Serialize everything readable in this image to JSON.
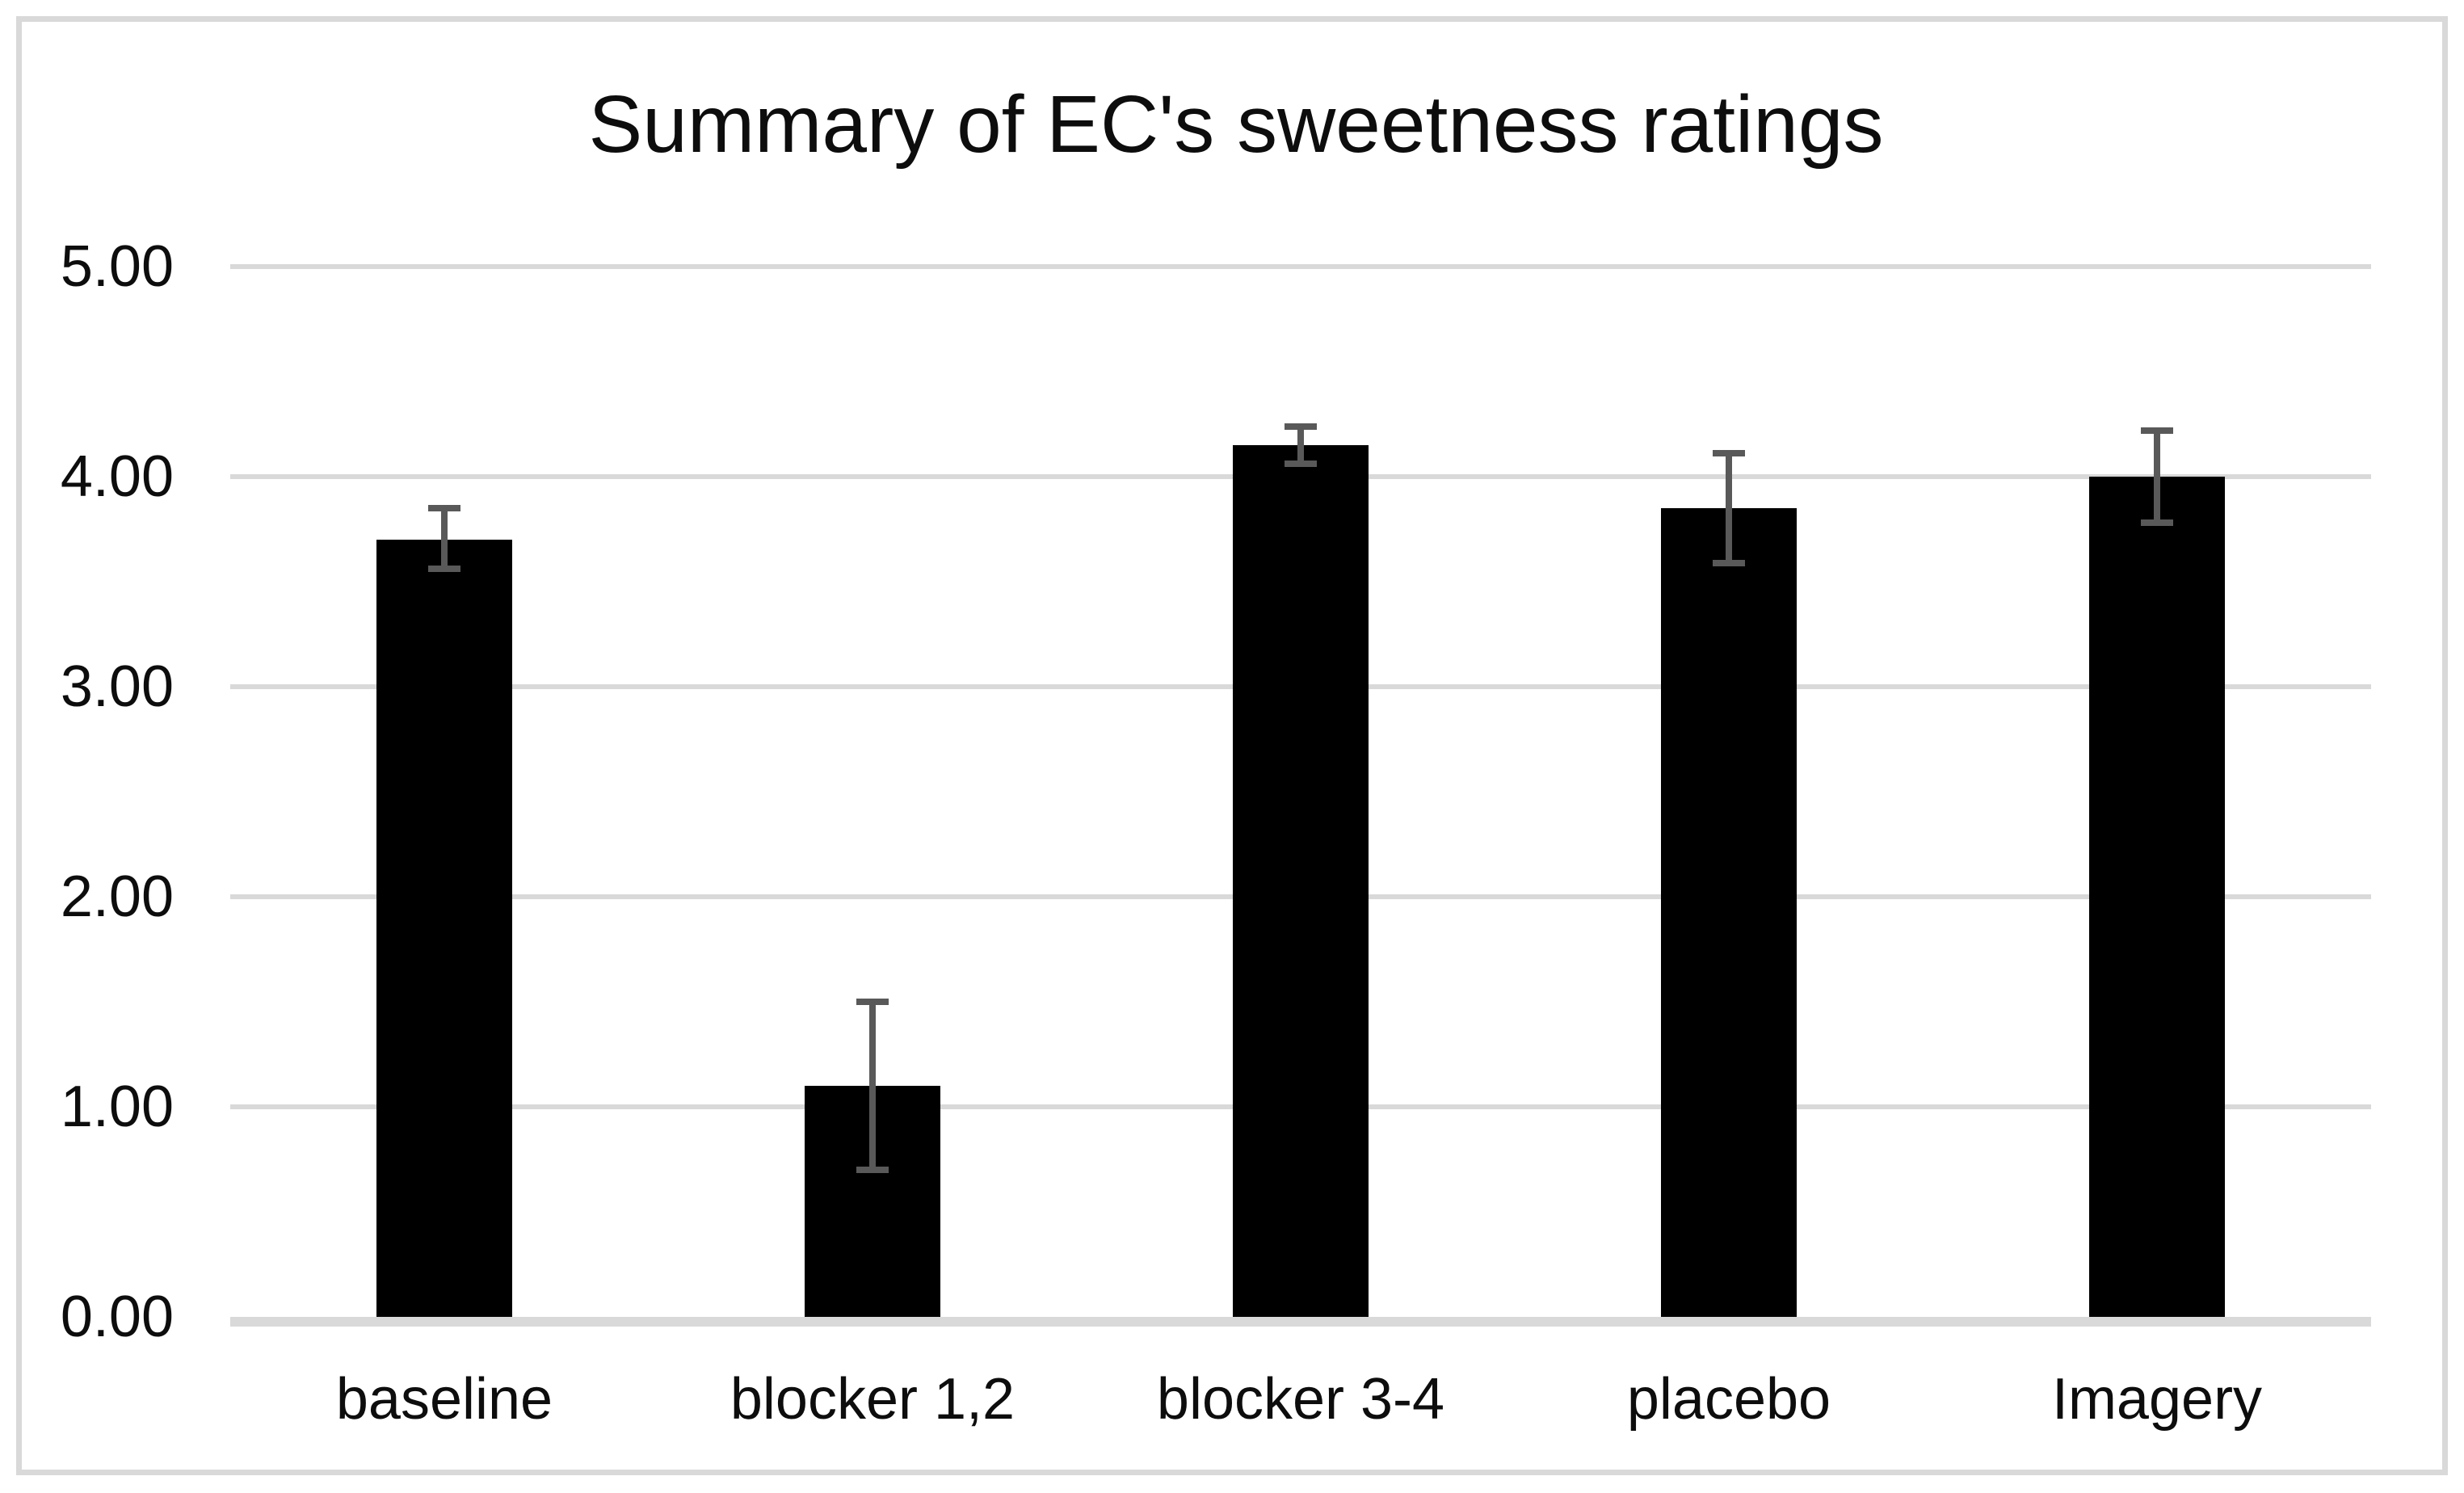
{
  "figure": {
    "background": "#ffffff",
    "border_color": "#d9d9d9"
  },
  "chart_data": {
    "type": "bar",
    "title": "Summary of EC's sweetness ratings",
    "categories": [
      "baseline",
      "blocker 1,2",
      "blocker 3-4",
      "placebo",
      "Imagery"
    ],
    "values": [
      3.7,
      1.1,
      4.15,
      3.85,
      4.0
    ],
    "error_bars": {
      "upper": [
        3.85,
        1.5,
        4.24,
        4.11,
        4.22
      ],
      "lower": [
        3.56,
        0.7,
        4.06,
        3.59,
        3.78
      ]
    },
    "xlabel": "",
    "ylabel": "",
    "ylim": [
      0,
      5
    ],
    "ytick_labels": [
      "0.00",
      "1.00",
      "2.00",
      "3.00",
      "4.00",
      "5.00"
    ],
    "ytick_values": [
      0,
      1,
      2,
      3,
      4,
      5
    ],
    "grid": true,
    "legend": false,
    "bar_color": "#000000",
    "error_bar_color": "#595959",
    "gridline_color": "#d9d9d9",
    "text_color": "#0d0d0d"
  }
}
